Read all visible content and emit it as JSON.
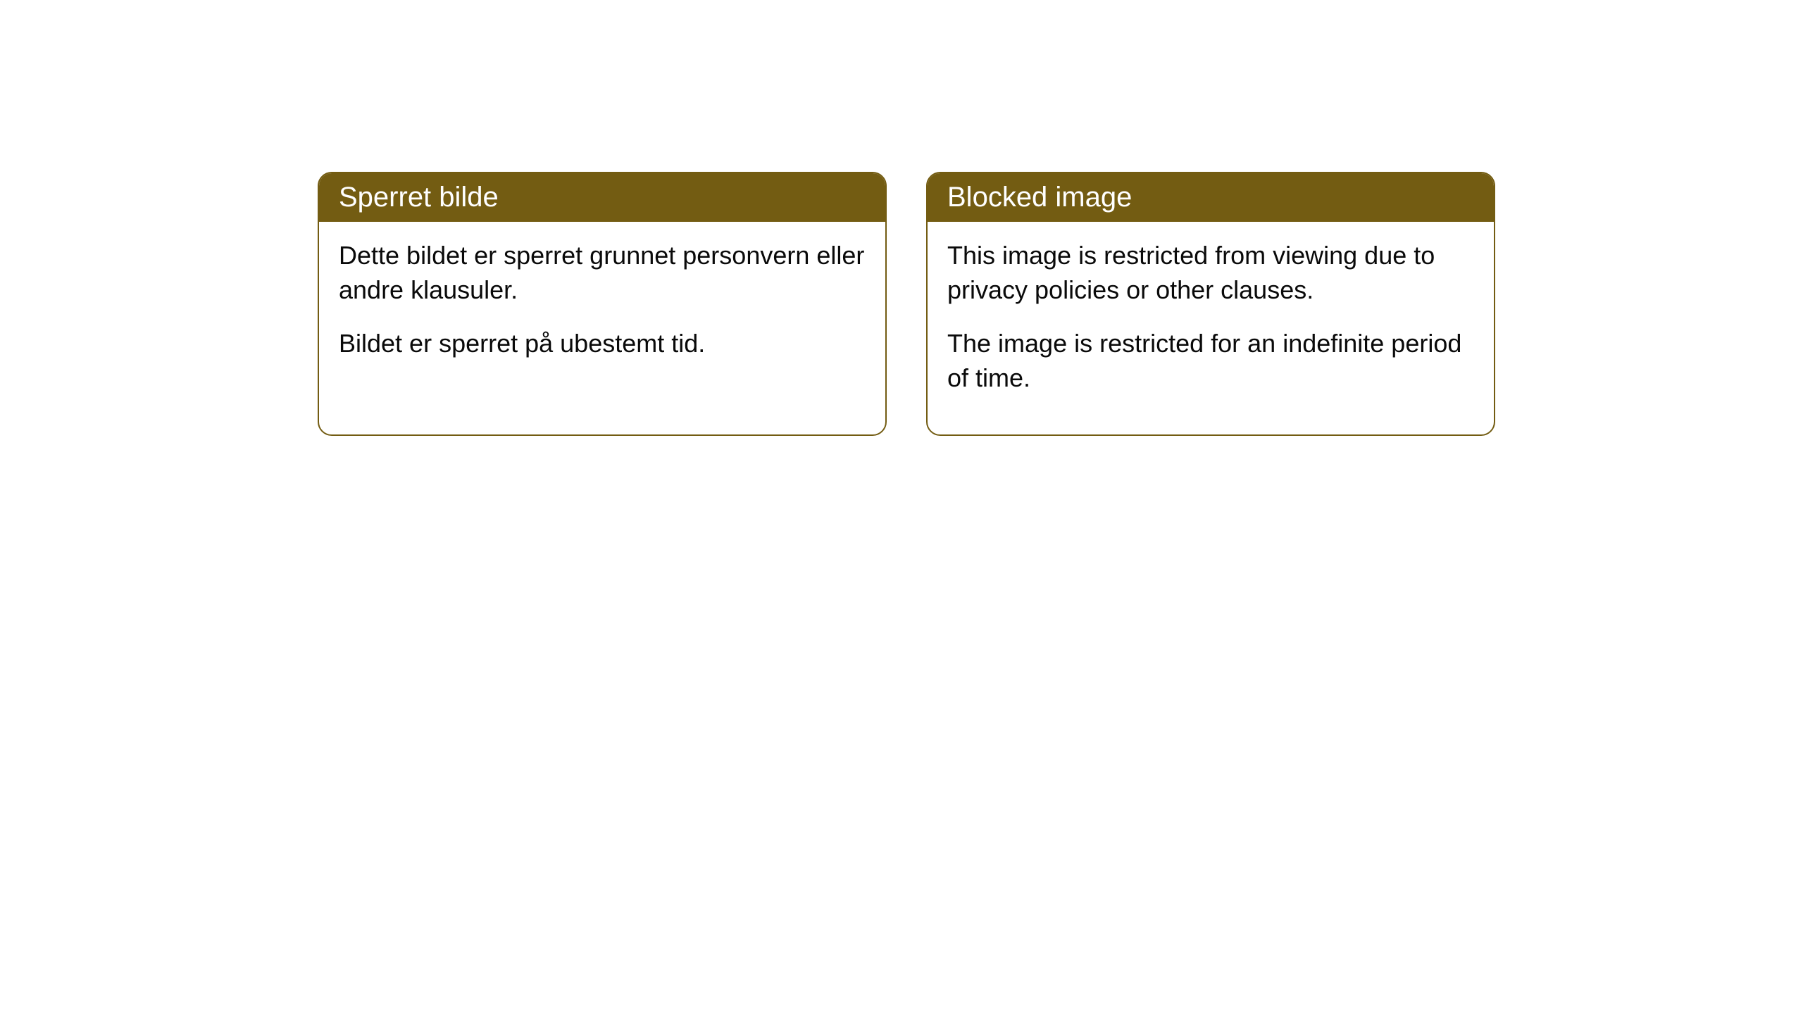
{
  "cards": [
    {
      "title": "Sperret bilde",
      "paragraph1": "Dette bildet er sperret grunnet personvern eller andre klausuler.",
      "paragraph2": "Bildet er sperret på ubestemt tid."
    },
    {
      "title": "Blocked image",
      "paragraph1": "This image is restricted from viewing due to privacy policies or other clauses.",
      "paragraph2": "The image is restricted for an indefinite period of time."
    }
  ],
  "styling": {
    "header_bg_color": "#735c12",
    "header_text_color": "#ffffff",
    "border_color": "#735c12",
    "body_text_color": "#0a0a0a",
    "background_color": "#ffffff",
    "border_radius": 20,
    "title_fontsize": 40,
    "body_fontsize": 36
  }
}
